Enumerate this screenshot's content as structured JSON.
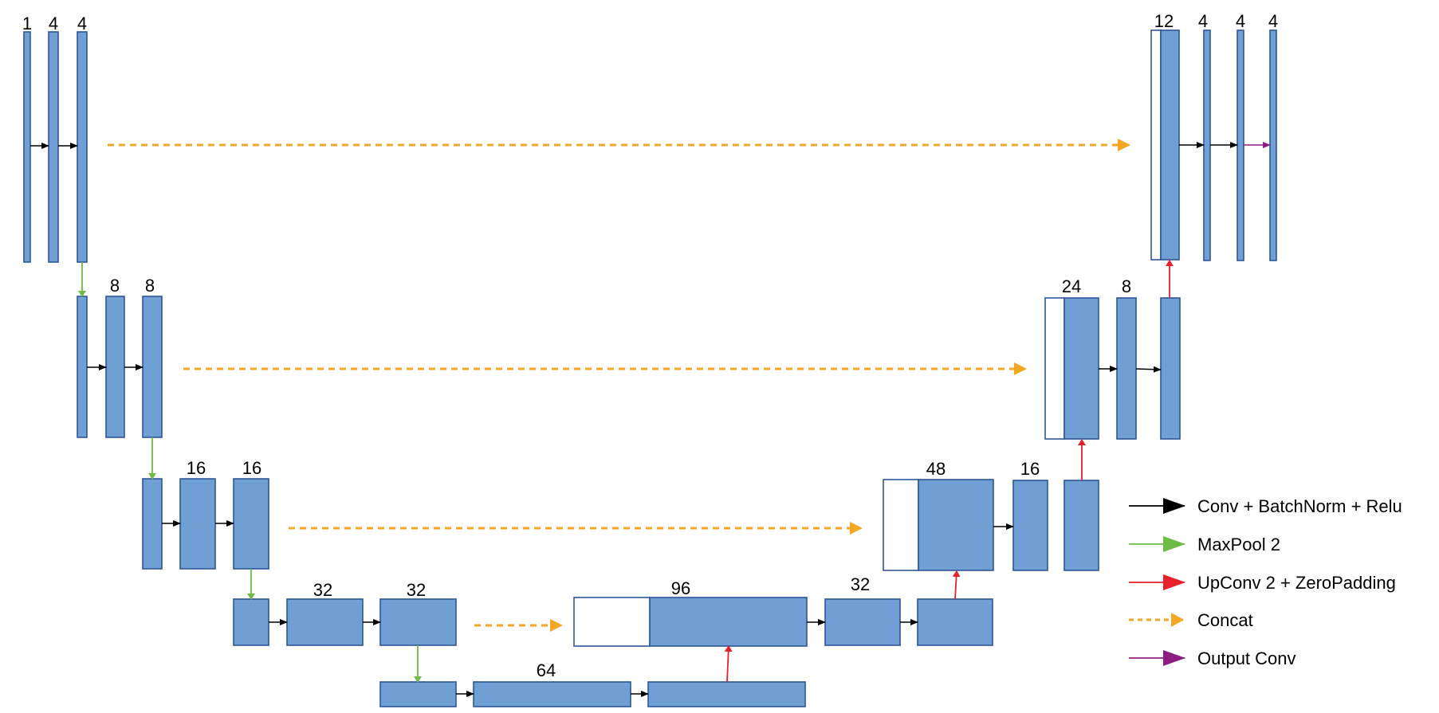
{
  "colors": {
    "block_fill": "#6f9fd3",
    "block_stroke": "#2e5597",
    "conv": "#000000",
    "maxpool": "#6cbc45",
    "upconv": "#e8202a",
    "concat": "#f5a623",
    "output": "#8e1d82"
  },
  "labels": {
    "enc1_in": "1",
    "enc1_a": "4",
    "enc1_b": "4",
    "enc2_a": "8",
    "enc2_b": "8",
    "enc3_a": "16",
    "enc3_b": "16",
    "enc4_a": "32",
    "enc4_b": "32",
    "bottleneck": "64",
    "dec4_cat": "96",
    "dec4_conv": "32",
    "dec3_cat": "48",
    "dec3_conv": "16",
    "dec2_cat": "24",
    "dec2_conv": "8",
    "dec1_cat": "12",
    "dec1_a": "4",
    "dec1_b": "4",
    "out": "4"
  },
  "legend": {
    "conv": "Conv + BatchNorm + Relu",
    "maxpool": "MaxPool 2",
    "upconv": "UpConv 2 + ZeroPadding",
    "concat": "Concat",
    "output": "Output Conv"
  }
}
